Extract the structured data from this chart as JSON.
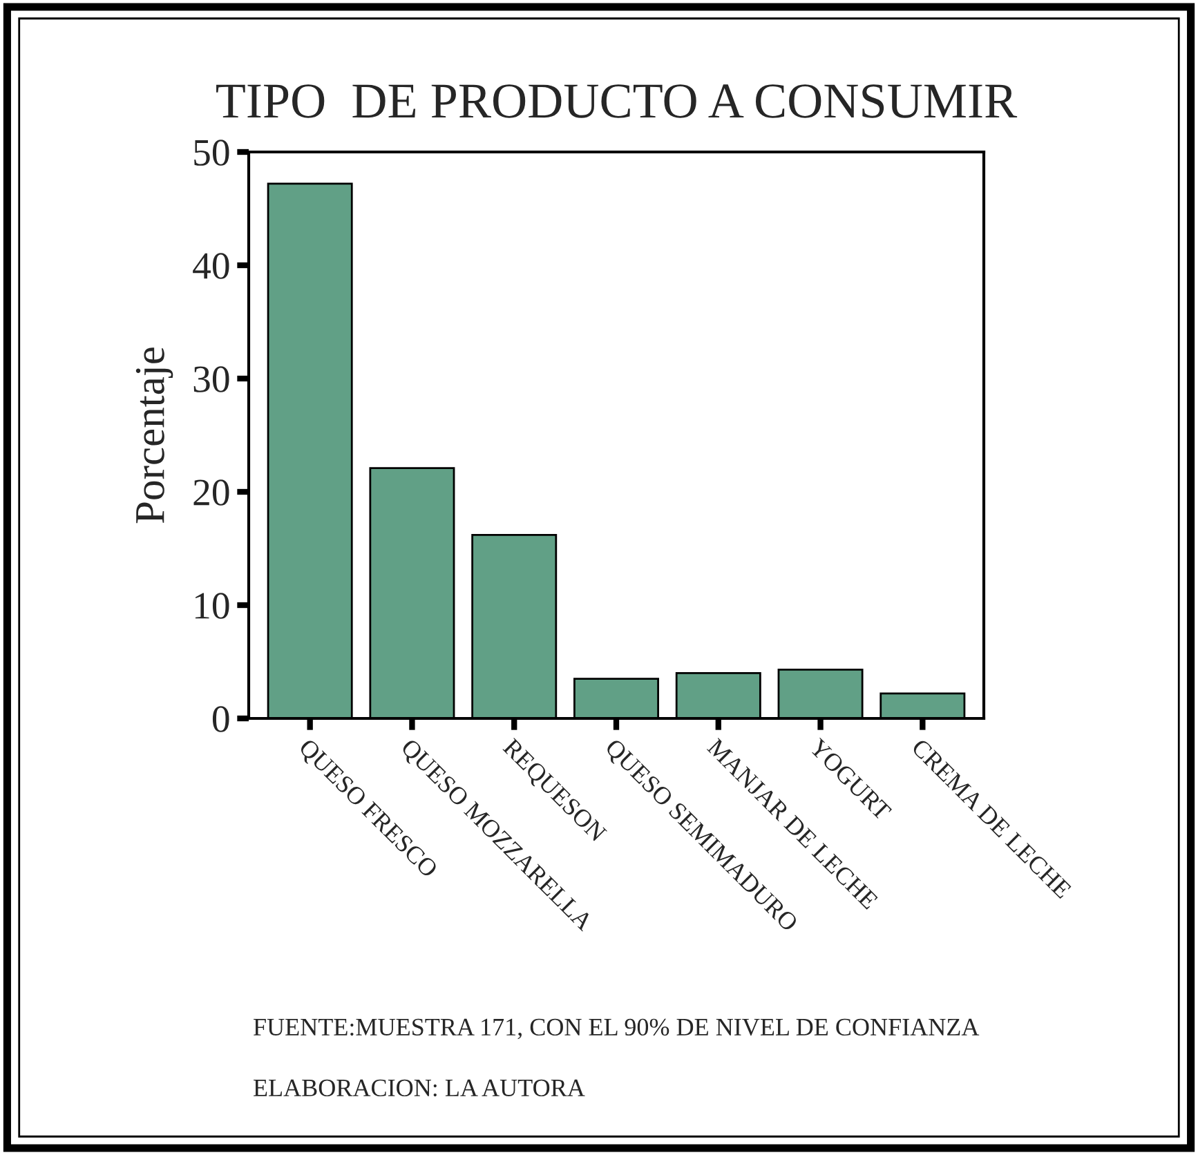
{
  "chart_data": {
    "type": "bar",
    "title": "TIPO  DE PRODUCTO A CONSUMIR",
    "ylabel": "Porcentaje",
    "categories": [
      "QUESO FRESCO",
      "QUESO MOZZARELLA",
      "REQUESON",
      "QUESO SEMIMADURO",
      "MANJAR DE LECHE",
      "YOGURT",
      "CREMA DE LECHE"
    ],
    "values": [
      47.2,
      22.1,
      16.2,
      3.5,
      4.0,
      4.3,
      2.2
    ],
    "color": "#61a086",
    "ylim": [
      0,
      50
    ],
    "yticks": [
      0,
      10,
      20,
      30,
      40,
      50
    ],
    "grid": false,
    "legend": false,
    "annotations": [
      "FUENTE:MUESTRA 171, CON EL 90% DE NIVEL DE CONFIANZA",
      "ELABORACION: LA AUTORA"
    ]
  }
}
